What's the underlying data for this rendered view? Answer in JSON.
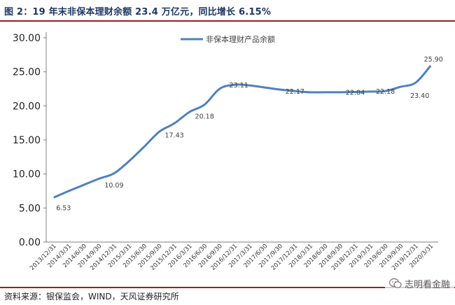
{
  "header": {
    "title": "图 2：19 年末非保本理财余额 23.4 万亿元，同比增长 6.15%"
  },
  "footer": {
    "source": "资料来源：银保监会，WIND，天风证券研究所",
    "watermark": "志明看金融"
  },
  "colors": {
    "line": "#4f81bd",
    "rule": "#9a1f24",
    "axis": "#7f7f7f",
    "label": "#404040"
  },
  "chart_data": {
    "type": "line",
    "title": "",
    "xlabel": "",
    "ylabel": "",
    "ylim": [
      0,
      30
    ],
    "yticks": [
      "0.00",
      "5.00",
      "10.00",
      "15.00",
      "20.00",
      "25.00",
      "30.00"
    ],
    "grid": false,
    "legend_position": "top-center",
    "categories": [
      "2013/12/31",
      "2014/3/31",
      "2014/6/30",
      "2014/9/30",
      "2014/12/31",
      "2015/3/31",
      "2015/6/30",
      "2015/9/30",
      "2015/12/31",
      "2016/3/31",
      "2016/6/30",
      "2016/9/30",
      "2016/12/31",
      "2017/3/31",
      "2017/6/30",
      "2017/9/30",
      "2017/12/31",
      "2018/3/31",
      "2018/6/30",
      "2018/9/30",
      "2018/12/31",
      "2019/3/31",
      "2019/6/30",
      "2019/9/30",
      "2019/12/31",
      "2020/3/31"
    ],
    "series": [
      {
        "name": "非保本理财产品余额",
        "values": [
          6.53,
          7.5,
          8.4,
          9.3,
          10.09,
          11.9,
          14.0,
          16.2,
          17.43,
          19.1,
          20.18,
          22.5,
          23.11,
          23.0,
          22.7,
          22.4,
          22.17,
          22.0,
          22.0,
          22.0,
          22.04,
          22.1,
          22.18,
          22.8,
          23.4,
          25.9
        ]
      }
    ],
    "data_labels": [
      {
        "index": 0,
        "text": "6.53"
      },
      {
        "index": 4,
        "text": "10.09"
      },
      {
        "index": 8,
        "text": "17.43"
      },
      {
        "index": 10,
        "text": "20.18"
      },
      {
        "index": 12,
        "text": "23.11"
      },
      {
        "index": 16,
        "text": "22.17"
      },
      {
        "index": 20,
        "text": "22.04"
      },
      {
        "index": 22,
        "text": "22.18"
      },
      {
        "index": 24,
        "text": "23.40"
      },
      {
        "index": 25,
        "text": "25.90"
      }
    ]
  }
}
